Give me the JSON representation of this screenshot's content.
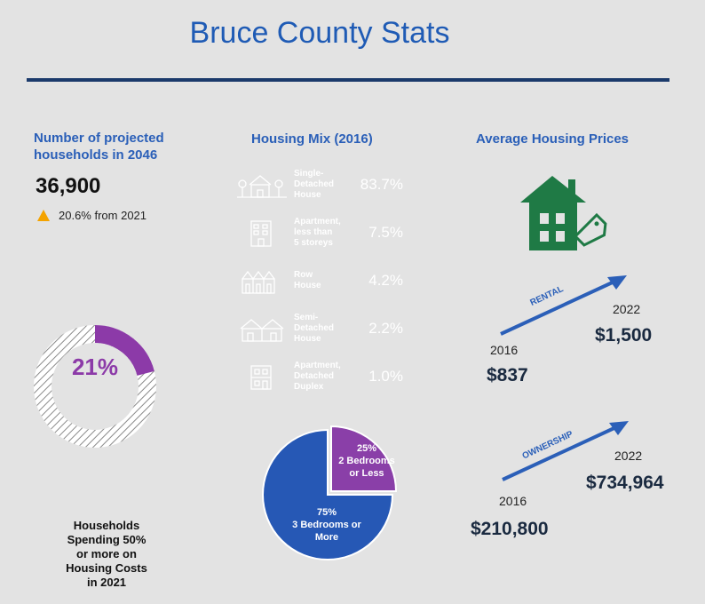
{
  "title": "Bruce County Stats",
  "projection": {
    "heading_line1": "Number of projected",
    "heading_line2": "households in 2046",
    "value": "36,900",
    "change": "20.6% from 2021"
  },
  "affordability": {
    "percent": "21%",
    "fraction": 0.21,
    "label_lines": [
      "Households",
      "Spending 50%",
      "or more on",
      "Housing Costs",
      "in 2021"
    ]
  },
  "housing_mix": {
    "heading": "Housing Mix (2016)",
    "items": [
      {
        "label_lines": [
          "Single-",
          "Detached",
          "House"
        ],
        "percent": "83.7%",
        "color": "#1c3f7e"
      },
      {
        "label_lines": [
          "Apartment,",
          "less than",
          "5 storeys"
        ],
        "percent": "7.5%",
        "color": "#2f7fe0"
      },
      {
        "label_lines": [
          "Row",
          "House"
        ],
        "percent": "4.2%",
        "color": "#8e3fa6"
      },
      {
        "label_lines": [
          "Semi-",
          "Detached",
          "House"
        ],
        "percent": "2.2%",
        "color": "#f0453c"
      },
      {
        "label_lines": [
          "Apartment,",
          "Detached",
          "Duplex"
        ],
        "percent": "1.0%",
        "color": "#1a2b47"
      }
    ]
  },
  "bedrooms": {
    "slices": [
      {
        "percent": "25%",
        "label_lines": [
          "2 Bedrooms",
          "or Less"
        ],
        "fraction": 0.25,
        "color": "#8a3fa8"
      },
      {
        "percent": "75%",
        "label_lines": [
          "3 Bedrooms or",
          "More"
        ],
        "fraction": 0.75,
        "color": "#2658b5"
      }
    ]
  },
  "prices": {
    "heading": "Average Housing Prices",
    "rental": {
      "label": "RENTAL",
      "year_start": "2016",
      "value_start": "$837",
      "year_end": "2022",
      "value_end": "$1,500"
    },
    "ownership": {
      "label": "OWNERSHIP",
      "year_start": "2016",
      "value_start": "$210,800",
      "year_end": "2022",
      "value_end": "$734,964"
    }
  },
  "colors": {
    "accent": "#2a5fb8",
    "house_icon": "#1f7a45",
    "arrow": "#2b5fb8",
    "triangle": "#f4a300"
  },
  "icons": {
    "house_price": "house-with-tag-icon",
    "change": "up-triangle-icon"
  }
}
